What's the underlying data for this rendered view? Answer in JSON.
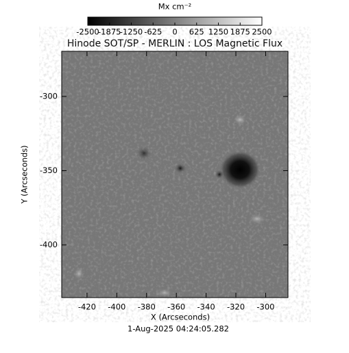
{
  "chart_data": {
    "type": "image",
    "title": "Hinode SOT/SP - MERLIN : LOS Magnetic Flux",
    "colorbar_label": "Mx cm⁻²",
    "colormap": "gray",
    "clim": [
      -2500,
      2500
    ],
    "cticks": [
      -2500,
      -1875,
      -1250,
      -625,
      0,
      625,
      1250,
      1875,
      2500
    ],
    "x_label": "X (Arcseconds)",
    "y_label": "Y (Arcseconds)",
    "xlim": [
      -437,
      -285
    ],
    "xticks": [
      -420,
      -400,
      -380,
      -360,
      -340,
      -320,
      -300
    ],
    "ylim": [
      -435.5,
      -269.6
    ],
    "yticks": [
      -400,
      -350,
      -300
    ],
    "date": "1-Aug-2025 04:24:05.282"
  }
}
